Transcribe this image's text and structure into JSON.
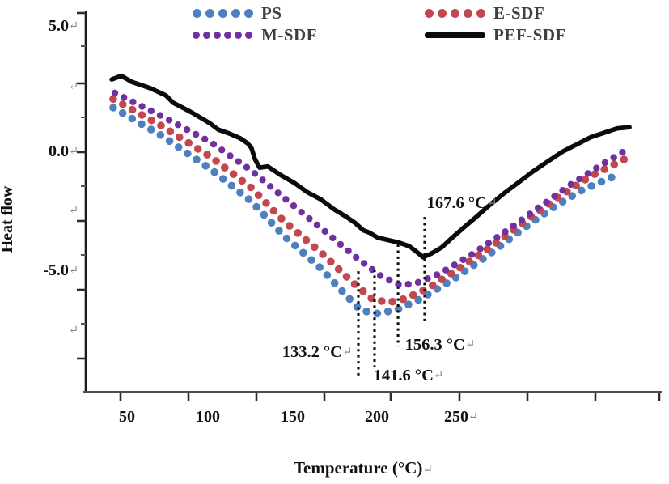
{
  "legend": {
    "items": [
      {
        "label": "PS",
        "color": "#4e80c0",
        "marker": "dots",
        "dot_count": 5
      },
      {
        "label": "M-SDF",
        "color": "#7030a0",
        "marker": "dots",
        "dot_count": 6
      },
      {
        "label": "E-SDF",
        "color": "#c1484e",
        "marker": "dots",
        "dot_count": 5
      },
      {
        "label": "PEF-SDF",
        "color": "#0a0a0a",
        "marker": "line",
        "dot_count": 0
      }
    ]
  },
  "y_axis": {
    "title": "Heat flow",
    "tick_labels": [
      "5.0↵",
      "↵",
      "0.0↵",
      "↵",
      "-5.0↵",
      "↵"
    ]
  },
  "x_axis": {
    "title": "Temperature (°C)↵",
    "tick_labels": [
      "50",
      "100",
      "150",
      "200",
      "250↵"
    ]
  },
  "chart_data": {
    "type": "line",
    "title": "",
    "xlabel": "Temperature (°C)",
    "ylabel": "Heat flow",
    "x_range": [
      25,
      366
    ],
    "y_range": [
      -9.9,
      5.7
    ],
    "x_ticks_labeled": [
      50,
      100,
      150,
      200,
      250
    ],
    "y_ticks_labeled": [
      5.0,
      0.0,
      -5.0
    ],
    "grid": false,
    "legend_position": "top",
    "series": [
      {
        "name": "PS",
        "color": "#4e80c0",
        "style": "dots",
        "points": [
          [
            41.8,
            1.75
          ],
          [
            70.7,
            0.6
          ],
          [
            99.5,
            -0.75
          ],
          [
            123.6,
            -2.05
          ],
          [
            142.8,
            -3.45
          ],
          [
            164.4,
            -4.75
          ],
          [
            178.8,
            -5.8
          ],
          [
            188.5,
            -6.5
          ],
          [
            198.1,
            -6.65
          ],
          [
            210.1,
            -6.5
          ],
          [
            224.5,
            -6.05
          ],
          [
            243.8,
            -5.25
          ],
          [
            263,
            -4.35
          ],
          [
            282.2,
            -3.35
          ],
          [
            301.4,
            -2.4
          ],
          [
            320.7,
            -1.6
          ],
          [
            341.3,
            -1
          ]
        ]
      },
      {
        "name": "E-SDF",
        "color": "#c1484e",
        "style": "dots",
        "points": [
          [
            41.8,
            2.1
          ],
          [
            70.7,
            1
          ],
          [
            99.5,
            -0.25
          ],
          [
            123.6,
            -1.5
          ],
          [
            142.8,
            -2.85
          ],
          [
            166.8,
            -4.25
          ],
          [
            183.7,
            -5.35
          ],
          [
            195.7,
            -6.05
          ],
          [
            205.3,
            -6.2
          ],
          [
            214.9,
            -6.05
          ],
          [
            229.3,
            -5.6
          ],
          [
            248.6,
            -4.75
          ],
          [
            267.8,
            -3.85
          ],
          [
            287,
            -2.85
          ],
          [
            306.3,
            -1.9
          ],
          [
            325.5,
            -1.05
          ],
          [
            345.7,
            -0.35
          ]
        ]
      },
      {
        "name": "M-SDF",
        "color": "#7030a0",
        "style": "dots",
        "points": [
          [
            42.8,
            2.35
          ],
          [
            70.7,
            1.4
          ],
          [
            99.5,
            0.35
          ],
          [
            123.6,
            -0.8
          ],
          [
            142.8,
            -1.9
          ],
          [
            166.8,
            -3.25
          ],
          [
            186.1,
            -4.35
          ],
          [
            200.5,
            -5.1
          ],
          [
            212.5,
            -5.5
          ],
          [
            222.1,
            -5.4
          ],
          [
            236.5,
            -5
          ],
          [
            255.8,
            -4.2
          ],
          [
            275,
            -3.3
          ],
          [
            294.2,
            -2.35
          ],
          [
            313.5,
            -1.4
          ],
          [
            332.7,
            -0.55
          ],
          [
            346.2,
            0
          ]
        ]
      },
      {
        "name": "PEF-SDF",
        "color": "#0a0a0a",
        "style": "line",
        "points": [
          [
            40.9,
            2.9
          ],
          [
            46.6,
            3.05
          ],
          [
            52.9,
            2.8
          ],
          [
            63.5,
            2.55
          ],
          [
            73.1,
            2.25
          ],
          [
            77.4,
            1.95
          ],
          [
            81.7,
            1.8
          ],
          [
            88.5,
            1.55
          ],
          [
            94.7,
            1.3
          ],
          [
            99.5,
            1.1
          ],
          [
            104.3,
            0.85
          ],
          [
            110.6,
            0.7
          ],
          [
            117.3,
            0.5
          ],
          [
            121.6,
            0.3
          ],
          [
            124,
            0.1
          ],
          [
            126,
            -0.35
          ],
          [
            128.8,
            -0.7
          ],
          [
            133.7,
            -0.65
          ],
          [
            141.3,
            -1
          ],
          [
            149,
            -1.3
          ],
          [
            157.2,
            -1.7
          ],
          [
            165.4,
            -2
          ],
          [
            173.1,
            -2.4
          ],
          [
            180.3,
            -2.7
          ],
          [
            185.6,
            -2.95
          ],
          [
            190.4,
            -3.25
          ],
          [
            194.2,
            -3.35
          ],
          [
            199,
            -3.55
          ],
          [
            205.3,
            -3.65
          ],
          [
            211.5,
            -3.75
          ],
          [
            217.8,
            -3.9
          ],
          [
            221.6,
            -4.1
          ],
          [
            226,
            -4.35
          ],
          [
            230.8,
            -4.2
          ],
          [
            237,
            -3.95
          ],
          [
            243.3,
            -3.55
          ],
          [
            250,
            -3.15
          ],
          [
            257.7,
            -2.7
          ],
          [
            265.9,
            -2.2
          ],
          [
            274,
            -1.75
          ],
          [
            282.7,
            -1.3
          ],
          [
            291.3,
            -0.85
          ],
          [
            300,
            -0.45
          ],
          [
            308.7,
            -0.05
          ],
          [
            317.3,
            0.25
          ],
          [
            325.9,
            0.55
          ],
          [
            334.6,
            0.75
          ],
          [
            341.3,
            0.9
          ],
          [
            348.6,
            0.95
          ]
        ]
      }
    ],
    "annotations": [
      {
        "label": "133.2 °C↵",
        "series": "PS",
        "line_t": 187.5,
        "v_top": -4.92,
        "v_bottom": -9.31,
        "label_t": 163.0,
        "label_v": -8.18
      },
      {
        "label": "141.6 °C↵",
        "series": "E-SDF",
        "line_t": 197.1,
        "v_top": -4.85,
        "v_bottom": -8.81,
        "label_t": 217.3,
        "label_v": -9.14
      },
      {
        "label": "156.3 °C↵",
        "series": "M-SDF",
        "line_t": 211.1,
        "v_top": -3.83,
        "v_bottom": -7.99,
        "label_t": 236.0,
        "label_v": -7.89
      },
      {
        "label": "167.6 °C↵",
        "series": "PEF-SDF",
        "line_t": 226.9,
        "v_top": -2.71,
        "v_bottom": -7.13,
        "label_t": 249.0,
        "label_v": -2.11
      }
    ]
  }
}
